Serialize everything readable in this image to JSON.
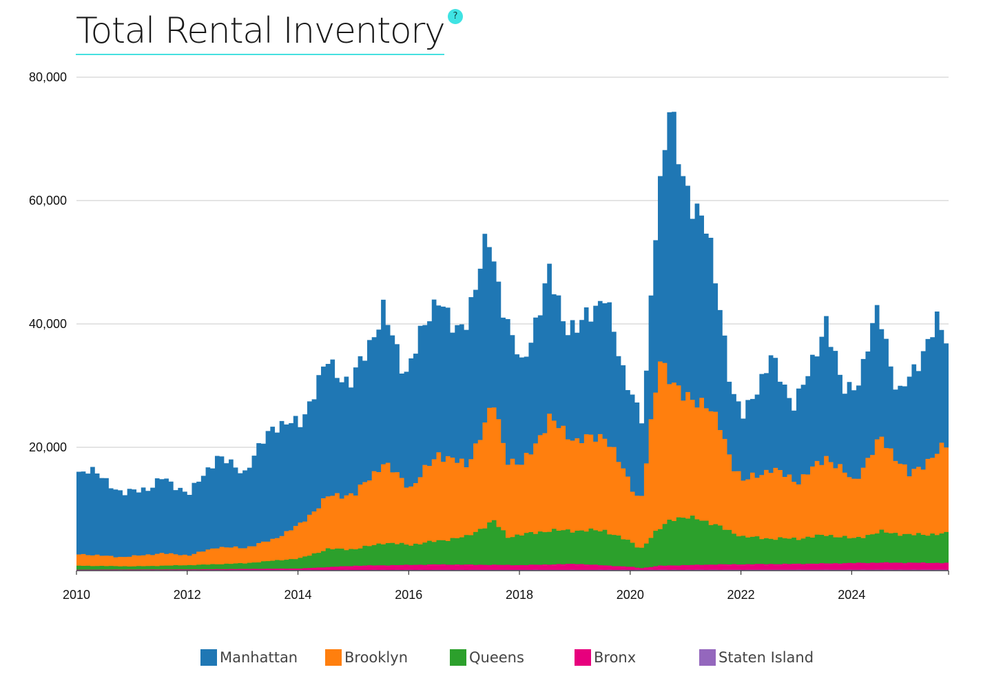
{
  "title": "Total Rental Inventory",
  "help_badge": "?",
  "chart_data": {
    "type": "area",
    "stacked": true,
    "x_range": [
      2010,
      2025.75
    ],
    "ylim": [
      0,
      80000
    ],
    "y_ticks": [
      20000,
      40000,
      60000,
      80000
    ],
    "y_tick_labels": [
      "20,000",
      "40,000",
      "60,000",
      "80,000"
    ],
    "x_ticks": [
      2010,
      2012,
      2014,
      2016,
      2018,
      2020,
      2022,
      2024
    ],
    "x_tick_labels": [
      "2010",
      "2012",
      "2014",
      "2016",
      "2018",
      "2020",
      "2022",
      "2024"
    ],
    "grid": true,
    "step": "monthly",
    "series": [
      {
        "name": "Staten Island",
        "color": "#9467bd",
        "points": [
          [
            2010,
            100
          ],
          [
            2025.7,
            150
          ]
        ]
      },
      {
        "name": "Bronx",
        "color": "#e7007d",
        "points": [
          [
            2010,
            150
          ],
          [
            2012,
            200
          ],
          [
            2014,
            350
          ],
          [
            2015,
            800
          ],
          [
            2016.5,
            1000
          ],
          [
            2018,
            900
          ],
          [
            2019,
            1100
          ],
          [
            2020,
            600
          ],
          [
            2020.15,
            400
          ],
          [
            2020.5,
            800
          ],
          [
            2021.5,
            1000
          ],
          [
            2023,
            1100
          ],
          [
            2024.5,
            1300
          ],
          [
            2025.7,
            1250
          ]
        ]
      },
      {
        "name": "Queens",
        "color": "#2ca02c",
        "points": [
          [
            2010,
            800
          ],
          [
            2011,
            700
          ],
          [
            2012,
            900
          ],
          [
            2013,
            1200
          ],
          [
            2014,
            2000
          ],
          [
            2014.5,
            3500
          ],
          [
            2015,
            3500
          ],
          [
            2015.5,
            4500
          ],
          [
            2016,
            4200
          ],
          [
            2017,
            5500
          ],
          [
            2017.5,
            8000
          ],
          [
            2017.75,
            5500
          ],
          [
            2018.5,
            6500
          ],
          [
            2019,
            6500
          ],
          [
            2019.5,
            6500
          ],
          [
            2020,
            4500
          ],
          [
            2020.15,
            3500
          ],
          [
            2020.4,
            6000
          ],
          [
            2020.7,
            8500
          ],
          [
            2021.2,
            8500
          ],
          [
            2021.6,
            7000
          ],
          [
            2022,
            5500
          ],
          [
            2022.5,
            5200
          ],
          [
            2023,
            5200
          ],
          [
            2023.5,
            5800
          ],
          [
            2024,
            5200
          ],
          [
            2024.5,
            6300
          ],
          [
            2025,
            5800
          ],
          [
            2025.7,
            6000
          ]
        ]
      },
      {
        "name": "Brooklyn",
        "color": "#ff7f0e",
        "points": [
          [
            2010,
            2700
          ],
          [
            2010.8,
            2200
          ],
          [
            2011.5,
            2800
          ],
          [
            2012,
            2500
          ],
          [
            2012.5,
            3800
          ],
          [
            2013,
            3700
          ],
          [
            2013.5,
            5000
          ],
          [
            2014,
            7500
          ],
          [
            2014.5,
            12000
          ],
          [
            2015,
            12500
          ],
          [
            2015.5,
            17500
          ],
          [
            2016,
            13500
          ],
          [
            2016.5,
            19000
          ],
          [
            2017,
            17000
          ],
          [
            2017.5,
            27000
          ],
          [
            2017.75,
            18000
          ],
          [
            2018,
            17000
          ],
          [
            2018.5,
            24500
          ],
          [
            2019,
            21000
          ],
          [
            2019.5,
            22000
          ],
          [
            2020,
            13500
          ],
          [
            2020.15,
            11000
          ],
          [
            2020.5,
            34500
          ],
          [
            2020.9,
            28000
          ],
          [
            2021.3,
            27500
          ],
          [
            2021.6,
            23000
          ],
          [
            2021.8,
            17500
          ],
          [
            2022,
            14500
          ],
          [
            2022.5,
            16500
          ],
          [
            2023,
            14500
          ],
          [
            2023.5,
            18500
          ],
          [
            2024,
            14500
          ],
          [
            2024.5,
            21500
          ],
          [
            2025,
            15500
          ],
          [
            2025.7,
            20500
          ]
        ]
      },
      {
        "name": "Manhattan",
        "color": "#1f77b4",
        "points": [
          [
            2010,
            16000
          ],
          [
            2010.2,
            16500
          ],
          [
            2010.8,
            12500
          ],
          [
            2011.3,
            13500
          ],
          [
            2011.5,
            15000
          ],
          [
            2012,
            12500
          ],
          [
            2012.5,
            18500
          ],
          [
            2013,
            16000
          ],
          [
            2013.5,
            23500
          ],
          [
            2014,
            24000
          ],
          [
            2014.5,
            34000
          ],
          [
            2014.9,
            30000
          ],
          [
            2015.5,
            42000
          ],
          [
            2015.9,
            32000
          ],
          [
            2016.5,
            45000
          ],
          [
            2016.8,
            38000
          ],
          [
            2017,
            41000
          ],
          [
            2017.4,
            54000
          ],
          [
            2017.75,
            40000
          ],
          [
            2018,
            33000
          ],
          [
            2018.5,
            48000
          ],
          [
            2018.8,
            40000
          ],
          [
            2019,
            39000
          ],
          [
            2019.5,
            45000
          ],
          [
            2019.8,
            33000
          ],
          [
            2020,
            29000
          ],
          [
            2020.2,
            23500
          ],
          [
            2020.4,
            54000
          ],
          [
            2020.65,
            76500
          ],
          [
            2020.9,
            63000
          ],
          [
            2021.3,
            57000
          ],
          [
            2021.6,
            42000
          ],
          [
            2021.8,
            29000
          ],
          [
            2022,
            25000
          ],
          [
            2022.5,
            34500
          ],
          [
            2022.9,
            27000
          ],
          [
            2023.2,
            32000
          ],
          [
            2023.5,
            41000
          ],
          [
            2023.8,
            29000
          ],
          [
            2024.1,
            31000
          ],
          [
            2024.45,
            43000
          ],
          [
            2024.8,
            28000
          ],
          [
            2025.1,
            33000
          ],
          [
            2025.5,
            40000
          ],
          [
            2025.7,
            37500
          ]
        ]
      }
    ],
    "legend_position": "bottom",
    "legend": [
      "Manhattan",
      "Brooklyn",
      "Queens",
      "Bronx",
      "Staten Island"
    ]
  },
  "legend": [
    {
      "label": "Manhattan",
      "color": "#1f77b4"
    },
    {
      "label": "Brooklyn",
      "color": "#ff7f0e"
    },
    {
      "label": "Queens",
      "color": "#2ca02c"
    },
    {
      "label": "Bronx",
      "color": "#e7007d"
    },
    {
      "label": "Staten Island",
      "color": "#9467bd"
    }
  ]
}
